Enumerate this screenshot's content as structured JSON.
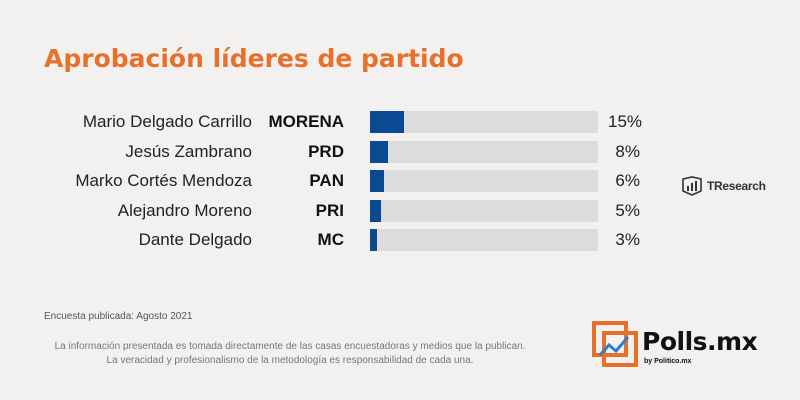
{
  "title": "Aprobación líderes de partido",
  "chart_data": {
    "type": "bar",
    "orientation": "horizontal",
    "categories": [
      "Mario Delgado Carrillo",
      "Jesús Zambrano",
      "Marko Cortés Mendoza",
      "Alejandro Moreno",
      "Dante Delgado"
    ],
    "parties": [
      "MORENA",
      "PRD",
      "PAN",
      "PRI",
      "MC"
    ],
    "values": [
      15,
      8,
      6,
      5,
      3
    ],
    "value_labels": [
      "15%",
      "8%",
      "6%",
      "5%",
      "3%"
    ],
    "xlim": [
      0,
      100
    ],
    "bar_color": "#0a4a93",
    "track_color": "#dcdcdc",
    "title": "Aprobación líderes de partido"
  },
  "source_logo": {
    "label": "TResearch",
    "icon": "tresearch-logo-icon"
  },
  "footer": {
    "survey_date": "Encuesta publicada: Agosto 2021",
    "disclaimer_line1": "La información presentada es tomada directamente de las casas encuestadoras y medios que la publican.",
    "disclaimer_line2": "La veracidad y profesionalismo de la metodología es responsabilidad de cada una."
  },
  "brand": {
    "name": "Polls.mx",
    "tagline": "by Politico.mx",
    "icon": "polls-logo-icon",
    "accent": "#e8702a"
  }
}
